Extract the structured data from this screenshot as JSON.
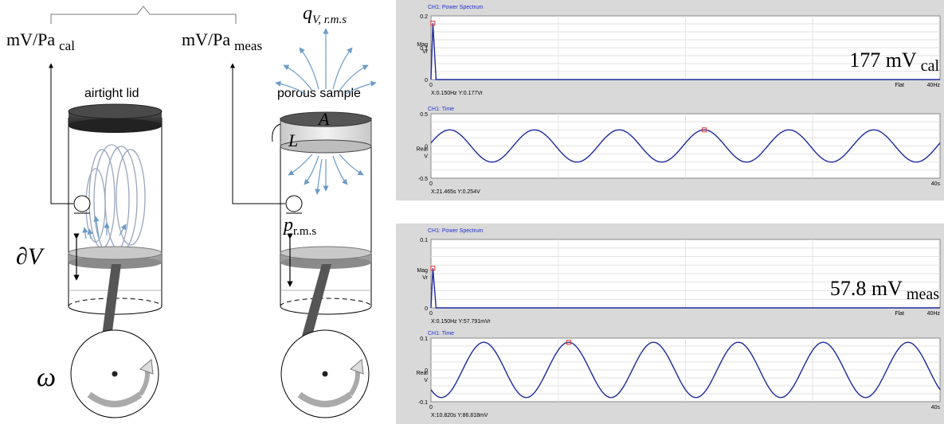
{
  "diagram": {
    "label_cal": "mV/Pa",
    "label_cal_sub": "cal",
    "label_meas": "mV/Pa",
    "label_meas_sub": "meas",
    "q_symbol": "q",
    "q_sub": "V, r.m.s",
    "airtight_lid": "airtight lid",
    "porous_sample": "porous sample",
    "area_symbol": "A",
    "length_symbol": "L",
    "p_symbol": "p",
    "p_sub": "r.m.s",
    "dV_symbol": "∂V",
    "omega_symbol": "ω"
  },
  "panels": [
    {
      "spectrum": {
        "title": "CH1: Power Spectrum",
        "ylabel_1": "Mag",
        "ylabel_2": "Vr",
        "y_ticks": [
          "0.2",
          "0.1",
          "0"
        ],
        "x_start": "0",
        "x_end": "40Hz",
        "window": "Flat",
        "readout": "X:0.150Hz Y:0.177Vr",
        "annotation_value": "177 mV",
        "annotation_sub": "cal"
      },
      "time": {
        "title": "CH1: Time",
        "ylabel_1": "Real",
        "ylabel_2": "V",
        "y_ticks": [
          "0.5",
          "0",
          "-0.5"
        ],
        "x_start": "0",
        "x_end": "40s",
        "readout": "X:21.465s Y:0.254V"
      }
    },
    {
      "spectrum": {
        "title": "CH1: Power Spectrum",
        "ylabel_1": "Mag",
        "ylabel_2": "Vr",
        "y_ticks": [
          "0.1",
          "0"
        ],
        "x_start": "0",
        "x_end": "40Hz",
        "window": "Flat",
        "readout": "X:0.150Hz Y:57.791mVr",
        "annotation_value": "57.8 mV",
        "annotation_sub": "meas"
      },
      "time": {
        "title": "CH1: Time",
        "ylabel_1": "Real",
        "ylabel_2": "V",
        "y_ticks": [
          "0.1",
          "0",
          "-0.1"
        ],
        "x_start": "0",
        "x_end": "40s",
        "readout": "X:10.820s Y:86.818mV"
      }
    }
  ],
  "chart_data": [
    {
      "type": "line",
      "title": "CH1: Power Spectrum",
      "ylabel": "Mag Vr",
      "xlim": [
        0,
        40
      ],
      "ylim": [
        0,
        0.2
      ],
      "series": [
        {
          "x": [
            0,
            0.15,
            0.4,
            40
          ],
          "values": [
            0,
            0.177,
            0,
            0
          ]
        }
      ]
    },
    {
      "type": "line",
      "title": "CH1: Time",
      "ylabel": "Real V",
      "xlim": [
        0,
        40
      ],
      "ylim": [
        -0.5,
        0.5
      ],
      "series": [
        {
          "frequency_hz": 0.15,
          "amplitude": 0.25,
          "peak_x": 21.465
        }
      ]
    },
    {
      "type": "line",
      "title": "CH1: Power Spectrum",
      "ylabel": "Mag Vr",
      "xlim": [
        0,
        40
      ],
      "ylim": [
        0,
        0.1
      ],
      "series": [
        {
          "x": [
            0,
            0.15,
            0.4,
            40
          ],
          "values": [
            0,
            0.0578,
            0,
            0
          ]
        }
      ]
    },
    {
      "type": "line",
      "title": "CH1: Time",
      "ylabel": "Real V",
      "xlim": [
        0,
        40
      ],
      "ylim": [
        -0.1,
        0.1
      ],
      "series": [
        {
          "frequency_hz": 0.15,
          "amplitude": 0.0868,
          "peak_x": 10.82
        }
      ]
    }
  ],
  "colors": {
    "trace": "#1f2a9a",
    "marker": "#e03030",
    "plot_bg": "#ffffff",
    "frame_bg": "#d9d9d9",
    "arrow_blue": "#6b9bc8",
    "title_blue": "#2030d0"
  }
}
